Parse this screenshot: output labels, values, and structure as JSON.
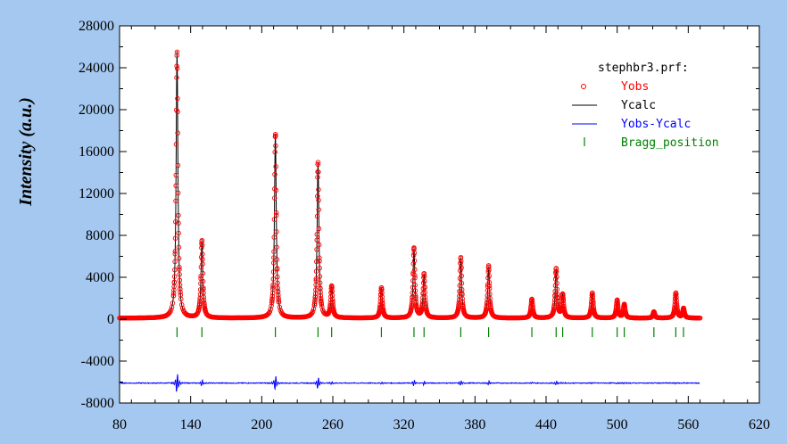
{
  "chart_data": {
    "type": "line",
    "ylabel": "Intensity (a.u.)",
    "xlim": [
      80,
      620
    ],
    "ylim": [
      -8000,
      28000
    ],
    "xticks": [
      80,
      140,
      200,
      260,
      320,
      380,
      440,
      500,
      560,
      620
    ],
    "yticks": [
      -8000,
      -4000,
      0,
      4000,
      8000,
      12000,
      16000,
      20000,
      24000,
      28000
    ],
    "colors": {
      "plot_bg": "#ffffff",
      "page_bg": "#a5c8f0",
      "yobs": "#ff0000",
      "ycalc": "#000000",
      "diff": "#0000ff",
      "bragg": "#008000"
    },
    "legend": {
      "title": "stephbr3.prf:",
      "entries": [
        {
          "name": "Yobs",
          "color": "#ff0000",
          "marker": "circle"
        },
        {
          "name": "Ycalc",
          "color": "#000000",
          "marker": "line"
        },
        {
          "name": "Yobs-Ycalc",
          "color": "#0000ff",
          "marker": "line"
        },
        {
          "name": "Bragg_position",
          "color": "#008000",
          "marker": "tick"
        }
      ]
    },
    "x_range": [
      80,
      570
    ],
    "baseline": 100,
    "peaks": [
      {
        "x": 128.5,
        "y": 25500
      },
      {
        "x": 149.5,
        "y": 7400
      },
      {
        "x": 211.5,
        "y": 17600
      },
      {
        "x": 247.5,
        "y": 14900
      },
      {
        "x": 259.0,
        "y": 3000
      },
      {
        "x": 301.0,
        "y": 2900
      },
      {
        "x": 328.5,
        "y": 6600
      },
      {
        "x": 337.0,
        "y": 4200
      },
      {
        "x": 368.0,
        "y": 5800
      },
      {
        "x": 391.5,
        "y": 4900
      },
      {
        "x": 428.0,
        "y": 1800
      },
      {
        "x": 448.5,
        "y": 4700
      },
      {
        "x": 454.0,
        "y": 2200
      },
      {
        "x": 479.0,
        "y": 2400
      },
      {
        "x": 500.0,
        "y": 1700
      },
      {
        "x": 506.0,
        "y": 1300
      },
      {
        "x": 531.0,
        "y": 600
      },
      {
        "x": 549.5,
        "y": 2400
      },
      {
        "x": 556.0,
        "y": 900
      }
    ],
    "bragg_positions": [
      128.5,
      149.5,
      211.5,
      247.5,
      259.0,
      301.0,
      328.5,
      337.0,
      368.0,
      391.5,
      428.0,
      448.5,
      454.0,
      479.0,
      500.0,
      506.0,
      531.0,
      549.5,
      556.0
    ],
    "bragg_y": -1200,
    "diff_offset": -6100
  }
}
